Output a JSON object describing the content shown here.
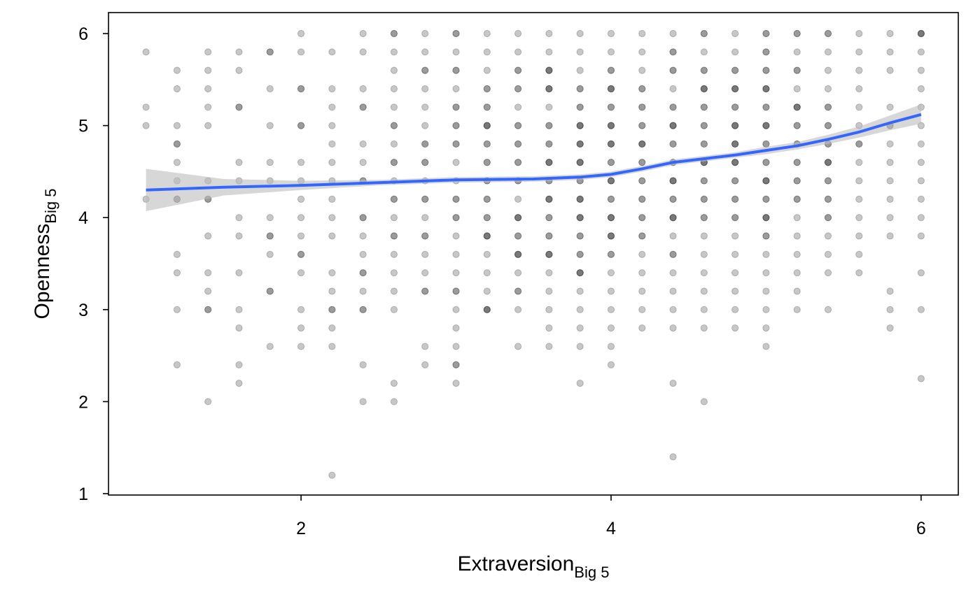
{
  "chart_data": {
    "type": "scatter",
    "xlabel": {
      "text": "Extraversion",
      "subscript": "Big 5"
    },
    "ylabel": {
      "text": "Openness",
      "subscript": "Big 5"
    },
    "xlim": [
      0.758,
      6.24
    ],
    "ylim": [
      0.985,
      6.228
    ],
    "xticks": [
      2,
      4,
      6
    ],
    "yticks": [
      1,
      2,
      3,
      4,
      5,
      6
    ],
    "grid": false,
    "color": "#000000",
    "alpha": 0.22,
    "x": [
      1,
      1.2,
      1.4,
      1.6,
      1.8,
      2,
      2.2,
      2.4,
      2.6,
      2.8,
      3,
      3.2,
      3.4,
      3.6,
      3.8,
      4,
      4.2,
      4.4,
      4.6,
      4.8,
      5,
      5.2,
      5.4,
      5.6,
      5.8,
      6
    ],
    "y": [
      [
        5.8,
        5.2,
        5,
        4.2
      ],
      [
        5.6,
        5.4,
        5,
        4.8,
        4.8,
        4.6,
        4.4,
        4.2,
        4.2,
        3.6,
        3.4,
        3,
        2.4
      ],
      [
        5.8,
        5.6,
        5.4,
        5.2,
        5,
        4.4,
        4.2,
        4.2,
        3.8,
        3.4,
        3.2,
        3,
        3,
        2
      ],
      [
        5.8,
        5.6,
        5.2,
        5.2,
        4.6,
        4.4,
        4,
        3.8,
        3.4,
        3,
        2.8,
        2.4,
        2.2
      ],
      [
        5.8,
        5.8,
        5.4,
        5,
        4.6,
        4.4,
        4,
        3.8,
        3.8,
        3.6,
        3.2,
        3.2,
        2.6
      ],
      [
        6,
        5.8,
        5.4,
        5.4,
        5,
        5,
        4.6,
        4.4,
        4.2,
        4,
        3.8,
        3.6,
        3.6,
        3.4,
        3,
        2.8,
        2.6
      ],
      [
        5.8,
        5.4,
        5.2,
        5,
        4.8,
        4.6,
        4.4,
        4.2,
        4,
        3.8,
        3.4,
        3.2,
        3,
        3,
        2.8,
        2.6,
        1.2
      ],
      [
        6,
        5.8,
        5.4,
        5.2,
        5.2,
        4.8,
        4.6,
        4.4,
        4.4,
        4,
        4,
        3.8,
        3.6,
        3.4,
        3.4,
        3.2,
        3,
        3,
        2.4,
        2
      ],
      [
        6,
        6,
        5.8,
        5.6,
        5.4,
        5.2,
        5,
        5,
        4.8,
        4.6,
        4.6,
        4.4,
        4.2,
        4.2,
        4,
        3.8,
        3.8,
        3.6,
        3.4,
        3.2,
        3,
        2.2,
        2
      ],
      [
        6,
        5.8,
        5.6,
        5.6,
        5.4,
        5.2,
        5,
        4.8,
        4.8,
        4.6,
        4.6,
        4.4,
        4.2,
        4.2,
        4,
        3.8,
        3.8,
        3.6,
        3.4,
        3.2,
        3.2,
        2.6,
        2.4
      ],
      [
        6,
        6,
        5.8,
        5.6,
        5.6,
        5.4,
        5.2,
        5.2,
        5,
        5,
        4.8,
        4.8,
        4.6,
        4.4,
        4.2,
        4.2,
        4,
        4,
        3.8,
        3.6,
        3.4,
        3.2,
        3.2,
        3,
        2.8,
        2.6,
        2.4,
        2.4,
        2.2
      ],
      [
        6,
        5.8,
        5.6,
        5.4,
        5.4,
        5.2,
        5.2,
        5,
        5,
        5,
        4.8,
        4.8,
        4.6,
        4.6,
        4.4,
        4.4,
        4.2,
        4.2,
        4,
        4,
        3.8,
        3.8,
        3.8,
        3.6,
        3.4,
        3.2,
        3,
        3,
        3
      ],
      [
        6,
        5.8,
        5.6,
        5.6,
        5.4,
        5.4,
        5.2,
        5,
        5,
        4.8,
        4.8,
        4.6,
        4.6,
        4.4,
        4.4,
        4.2,
        4,
        4,
        4,
        3.8,
        3.8,
        3.6,
        3.6,
        3.6,
        3.4,
        3.2,
        3.2,
        3,
        2.6
      ],
      [
        6,
        5.8,
        5.6,
        5.6,
        5.6,
        5.4,
        5.4,
        5.4,
        5.2,
        5,
        5,
        4.8,
        4.8,
        4.6,
        4.6,
        4.6,
        4.4,
        4.4,
        4.2,
        4.2,
        4.2,
        4,
        4,
        3.8,
        3.8,
        3.6,
        3.6,
        3.6,
        3.4,
        3.2,
        3,
        2.8,
        2.6
      ],
      [
        6,
        5.8,
        5.6,
        5.4,
        5.4,
        5.2,
        5.2,
        5,
        5,
        5,
        4.8,
        4.8,
        4.8,
        4.6,
        4.6,
        4.6,
        4.4,
        4.4,
        4.2,
        4.2,
        4.2,
        4,
        4,
        4,
        3.8,
        3.8,
        3.6,
        3.6,
        3.4,
        3.4,
        3.4,
        3.2,
        3,
        2.8,
        2.6,
        2.2
      ],
      [
        6,
        5.8,
        5.6,
        5.6,
        5.4,
        5.4,
        5.4,
        5.2,
        5.2,
        5,
        5,
        5,
        4.8,
        4.8,
        4.8,
        4.6,
        4.6,
        4.4,
        4.4,
        4.4,
        4.2,
        4.2,
        4,
        4,
        4,
        3.8,
        3.8,
        3.8,
        3.6,
        3.6,
        3.4,
        3.2,
        3,
        2.8,
        2.6,
        2.4
      ],
      [
        6,
        5.8,
        5.6,
        5.4,
        5.4,
        5.2,
        5.2,
        5,
        5,
        4.8,
        4.8,
        4.8,
        4.6,
        4.6,
        4.4,
        4.4,
        4.2,
        4.2,
        4,
        4,
        3.8,
        3.8,
        3.6,
        3.4,
        3.2,
        3,
        2.8
      ],
      [
        6,
        5.8,
        5.8,
        5.6,
        5.6,
        5.4,
        5.2,
        5.2,
        5,
        5,
        5,
        4.8,
        4.8,
        4.6,
        4.6,
        4.4,
        4.4,
        4.4,
        4.2,
        4.2,
        4,
        4,
        4,
        3.8,
        3.6,
        3.6,
        3.4,
        3.2,
        3,
        2.8,
        2.2,
        1.4
      ],
      [
        6,
        6,
        5.8,
        5.6,
        5.6,
        5.4,
        5.4,
        5.4,
        5.2,
        5.2,
        5,
        5,
        4.8,
        4.8,
        4.6,
        4.6,
        4.6,
        4.4,
        4.4,
        4.2,
        4.2,
        4,
        4,
        3.8,
        3.6,
        3.4,
        3.2,
        3,
        2.8,
        2
      ],
      [
        6,
        5.8,
        5.6,
        5.6,
        5.4,
        5.4,
        5.4,
        5.2,
        5.2,
        5,
        5,
        5,
        4.8,
        4.8,
        4.8,
        4.6,
        4.6,
        4.6,
        4.4,
        4.4,
        4.2,
        4.2,
        4,
        4,
        3.8,
        3.6,
        3.4,
        3.2,
        3,
        2.8
      ],
      [
        6,
        6,
        5.8,
        5.8,
        5.6,
        5.6,
        5.4,
        5.4,
        5.4,
        5.2,
        5.2,
        5,
        5,
        5,
        4.8,
        4.8,
        4.6,
        4.6,
        4.4,
        4.4,
        4.4,
        4.2,
        4.2,
        4,
        4,
        4,
        3.8,
        3.8,
        3.6,
        3.4,
        3.2,
        3,
        2.8,
        2.6
      ],
      [
        6,
        6,
        5.8,
        5.6,
        5.6,
        5.4,
        5.2,
        5.2,
        5.2,
        5,
        5,
        4.8,
        4.8,
        4.6,
        4.6,
        4.4,
        4.4,
        4.2,
        4.2,
        4,
        3.8,
        3.6,
        3.4,
        3.2,
        3
      ],
      [
        6,
        6,
        5.8,
        5.6,
        5.4,
        5.2,
        5.2,
        5,
        5,
        4.8,
        4.8,
        4.6,
        4.6,
        4.6,
        4.4,
        4.4,
        4.2,
        4.2,
        4,
        4,
        3.8,
        3.6,
        3.4,
        3
      ],
      [
        6,
        5.8,
        5.6,
        5.4,
        5.2,
        5,
        4.8,
        4.8,
        4.6,
        4.4,
        4.2,
        4,
        3.8,
        3.6,
        3.4
      ],
      [
        6,
        5.8,
        5.6,
        5.2,
        5,
        5,
        4.8,
        4.6,
        4.4,
        4.2,
        4,
        3.8,
        3.2,
        3,
        2.8
      ],
      [
        6,
        6,
        6,
        5.8,
        5.6,
        5.4,
        5.2,
        5,
        4.8,
        4.6,
        4.4,
        4.2,
        4,
        3.8,
        3.4,
        3,
        2.25
      ]
    ],
    "smooth": {
      "color": "#3366ff",
      "band_color": "#bdbdbd",
      "x": [
        1,
        1.5,
        2,
        2.5,
        3,
        3.5,
        3.8,
        4,
        4.2,
        4.4,
        4.6,
        4.8,
        5,
        5.2,
        5.4,
        5.6,
        5.8,
        6
      ],
      "y": [
        4.3,
        4.33,
        4.35,
        4.38,
        4.41,
        4.42,
        4.44,
        4.47,
        4.53,
        4.6,
        4.64,
        4.68,
        4.73,
        4.78,
        4.85,
        4.93,
        5.03,
        5.12
      ],
      "lower": [
        4.07,
        4.24,
        4.3,
        4.35,
        4.38,
        4.39,
        4.41,
        4.44,
        4.5,
        4.57,
        4.61,
        4.65,
        4.69,
        4.74,
        4.8,
        4.87,
        4.95,
        5.02
      ],
      "upper": [
        4.53,
        4.42,
        4.4,
        4.41,
        4.44,
        4.45,
        4.47,
        4.5,
        4.56,
        4.63,
        4.67,
        4.71,
        4.77,
        4.82,
        4.9,
        4.99,
        5.11,
        5.23
      ]
    }
  }
}
